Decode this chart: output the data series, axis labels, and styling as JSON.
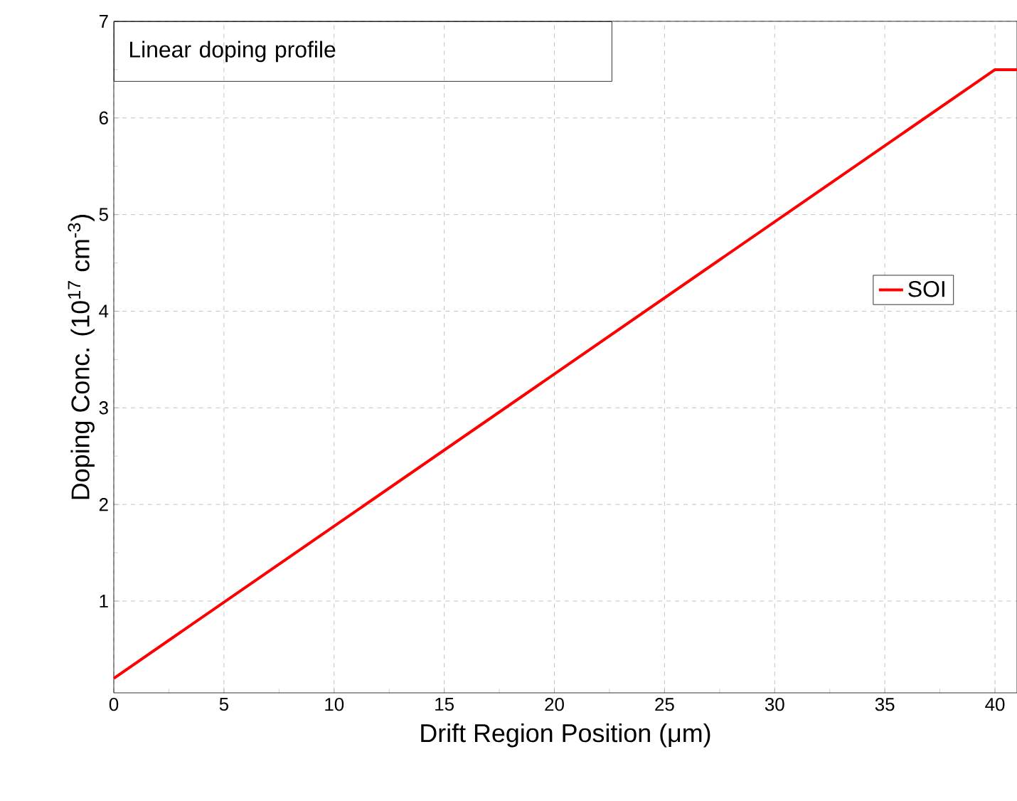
{
  "chart_data": {
    "type": "line",
    "xlabel": "Drift Region Position  (μm)",
    "ylabel": "Doping Conc. (10$^{17}$ cm$^{-3}$)",
    "annotations": [
      "Linear doping profile"
    ],
    "x": [
      0,
      40,
      41
    ],
    "series": [
      {
        "name": "SOI",
        "color": "#ff0000",
        "values": [
          0.2,
          6.5,
          6.5
        ]
      }
    ],
    "xlim": [
      0,
      41
    ],
    "ylim": [
      0.05,
      7
    ],
    "xticks": [
      0,
      5,
      10,
      15,
      20,
      25,
      30,
      35,
      40
    ],
    "yticks": [
      1,
      2,
      3,
      4,
      5,
      6,
      7
    ],
    "grid": true,
    "legend": "right",
    "marker": "none",
    "line_style": "solid"
  }
}
